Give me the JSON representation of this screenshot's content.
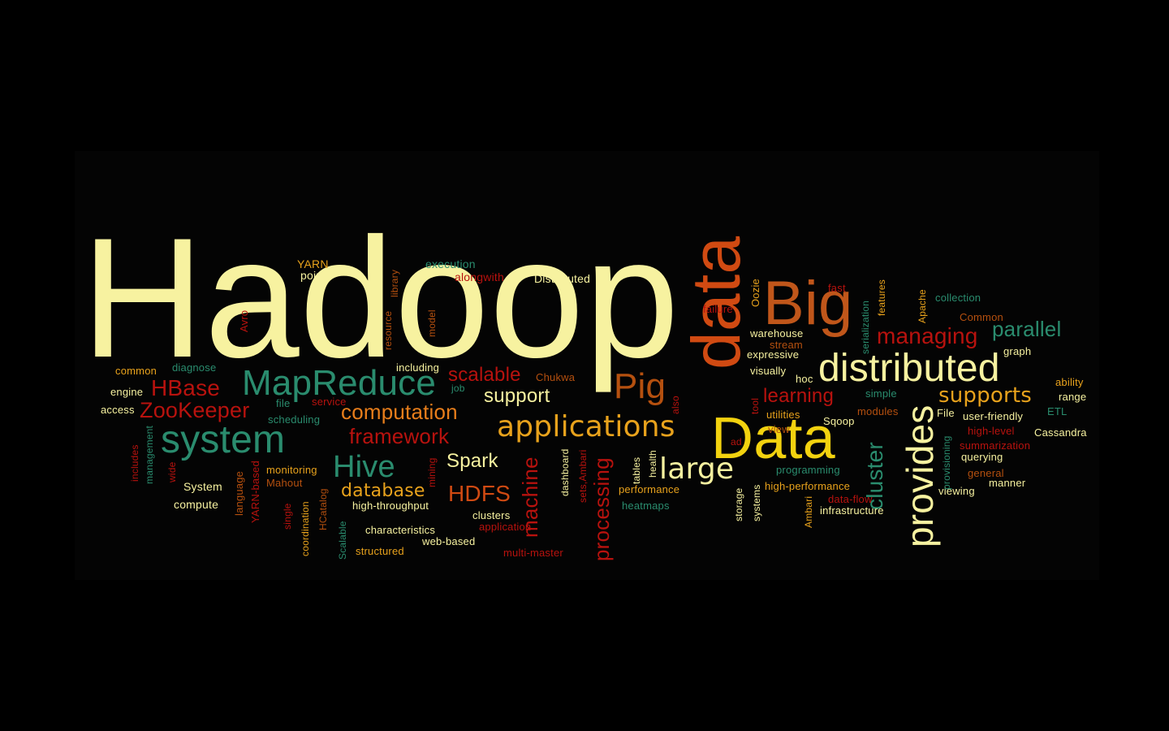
{
  "colors": {
    "background": "#000000",
    "cream": "#F7F2A0",
    "orange": "#E87E1B",
    "red": "#B8120E",
    "green": "#2A8C6E",
    "brown": "#B5500F",
    "rust": "#D04A12",
    "gold": "#E0A21C"
  },
  "words": [
    {
      "text": "Hadoop",
      "color": "#F7F2A0"
    },
    {
      "text": "data",
      "color": "#D04A12"
    },
    {
      "text": "Big",
      "color": "#C0561A"
    },
    {
      "text": "Data",
      "color": "#F2D20F"
    },
    {
      "text": "distributed",
      "color": "#F7F2A0"
    },
    {
      "text": "provides",
      "color": "#F7F2A0"
    },
    {
      "text": "MapReduce",
      "color": "#2A8C6E"
    },
    {
      "text": "system",
      "color": "#2A8C6E"
    },
    {
      "text": "applications",
      "color": "#E8A21C"
    },
    {
      "text": "Pig",
      "color": "#B5500F"
    },
    {
      "text": "large",
      "color": "#F7F2A0"
    },
    {
      "text": "Hive",
      "color": "#2A8C6E"
    },
    {
      "text": "HBase",
      "color": "#B8120E"
    },
    {
      "text": "ZooKeeper",
      "color": "#B8120E"
    },
    {
      "text": "managing",
      "color": "#B8120E"
    },
    {
      "text": "parallel",
      "color": "#2A8C6E"
    },
    {
      "text": "supports",
      "color": "#E8A21C"
    },
    {
      "text": "cluster",
      "color": "#2A8C6E"
    },
    {
      "text": "computation",
      "color": "#E87E1B"
    },
    {
      "text": "framework",
      "color": "#B8120E"
    },
    {
      "text": "scalable",
      "color": "#B8120E"
    },
    {
      "text": "support",
      "color": "#F7F2A0"
    },
    {
      "text": "Spark",
      "color": "#F7F2A0"
    },
    {
      "text": "database",
      "color": "#E8A21C"
    },
    {
      "text": "HDFS",
      "color": "#D04A12"
    },
    {
      "text": "machine",
      "color": "#B8120E"
    },
    {
      "text": "processing",
      "color": "#B8120E"
    },
    {
      "text": "learning",
      "color": "#B8120E"
    },
    {
      "text": "YARN",
      "color": "#E8A21C"
    },
    {
      "text": "points",
      "color": "#F7F2A0"
    },
    {
      "text": "execution",
      "color": "#2A8C6E"
    },
    {
      "text": "alongwith",
      "color": "#B8120E"
    },
    {
      "text": "Distributed",
      "color": "#F7F2A0"
    },
    {
      "text": "library",
      "color": "#B5500F"
    },
    {
      "text": "Avro",
      "color": "#B8120E"
    },
    {
      "text": "resource",
      "color": "#B5500F"
    },
    {
      "text": "model",
      "color": "#B5500F"
    },
    {
      "text": "common",
      "color": "#E8A21C"
    },
    {
      "text": "diagnose",
      "color": "#2A8C6E"
    },
    {
      "text": "including",
      "color": "#F7F2A0"
    },
    {
      "text": "engine",
      "color": "#F7F2A0"
    },
    {
      "text": "access",
      "color": "#F7F2A0"
    },
    {
      "text": "file",
      "color": "#2A8C6E"
    },
    {
      "text": "service",
      "color": "#B8120E"
    },
    {
      "text": "job",
      "color": "#2A8C6E"
    },
    {
      "text": "scheduling",
      "color": "#2A8C6E"
    },
    {
      "text": "Chukwa",
      "color": "#B5500F"
    },
    {
      "text": "includes",
      "color": "#B8120E"
    },
    {
      "text": "management",
      "color": "#2A8C6E"
    },
    {
      "text": "wide",
      "color": "#B8120E"
    },
    {
      "text": "System",
      "color": "#F7F2A0"
    },
    {
      "text": "compute",
      "color": "#F7F2A0"
    },
    {
      "text": "language",
      "color": "#B5500F"
    },
    {
      "text": "YARN-based",
      "color": "#B8120E"
    },
    {
      "text": "monitoring",
      "color": "#E8A21C"
    },
    {
      "text": "Mahout",
      "color": "#B5500F"
    },
    {
      "text": "single",
      "color": "#B8120E"
    },
    {
      "text": "coordination",
      "color": "#E8A21C"
    },
    {
      "text": "HCatalog",
      "color": "#B5500F"
    },
    {
      "text": "Scalable",
      "color": "#2A8C6E"
    },
    {
      "text": "high-throughput",
      "color": "#F7F2A0"
    },
    {
      "text": "characteristics",
      "color": "#F7F2A0"
    },
    {
      "text": "structured",
      "color": "#E8A21C"
    },
    {
      "text": "mining",
      "color": "#B8120E"
    },
    {
      "text": "clusters",
      "color": "#F7F2A0"
    },
    {
      "text": "application",
      "color": "#B8120E"
    },
    {
      "text": "web-based",
      "color": "#F7F2A0"
    },
    {
      "text": "multi-master",
      "color": "#B8120E"
    },
    {
      "text": "dashboard",
      "color": "#F7F2A0"
    },
    {
      "text": "sets,Ambari",
      "color": "#B8120E"
    },
    {
      "text": "performance",
      "color": "#E8A21C"
    },
    {
      "text": "heatmaps",
      "color": "#2A8C6E"
    },
    {
      "text": "tables",
      "color": "#F7F2A0"
    },
    {
      "text": "health",
      "color": "#F7F2A0"
    },
    {
      "text": "also",
      "color": "#B8120E"
    },
    {
      "text": "failure",
      "color": "#B8120E"
    },
    {
      "text": "Oozie",
      "color": "#E8A21C"
    },
    {
      "text": "warehouse",
      "color": "#F7F2A0"
    },
    {
      "text": "stream",
      "color": "#B5500F"
    },
    {
      "text": "expressive",
      "color": "#F7F2A0"
    },
    {
      "text": "visually",
      "color": "#F7F2A0"
    },
    {
      "text": "hoc",
      "color": "#F7F2A0"
    },
    {
      "text": "tool",
      "color": "#B8120E"
    },
    {
      "text": "utilities",
      "color": "#E8A21C"
    },
    {
      "text": "view",
      "color": "#B5500F"
    },
    {
      "text": "ad",
      "color": "#B8120E"
    },
    {
      "text": "Sqoop",
      "color": "#F7F2A0"
    },
    {
      "text": "programming",
      "color": "#2A8C6E"
    },
    {
      "text": "high-performance",
      "color": "#E8A21C"
    },
    {
      "text": "storage",
      "color": "#F7F2A0"
    },
    {
      "text": "systems",
      "color": "#F7F2A0"
    },
    {
      "text": "Ambari",
      "color": "#E8A21C"
    },
    {
      "text": "data-flow",
      "color": "#B8120E"
    },
    {
      "text": "infrastructure",
      "color": "#F7F2A0"
    },
    {
      "text": "fast",
      "color": "#B8120E"
    },
    {
      "text": "serialization",
      "color": "#2A8C6E"
    },
    {
      "text": "features",
      "color": "#E8A21C"
    },
    {
      "text": "Apache",
      "color": "#E8A21C"
    },
    {
      "text": "collection",
      "color": "#2A8C6E"
    },
    {
      "text": "Common",
      "color": "#B5500F"
    },
    {
      "text": "graph",
      "color": "#F7F2A0"
    },
    {
      "text": "simple",
      "color": "#2A8C6E"
    },
    {
      "text": "modules",
      "color": "#B5500F"
    },
    {
      "text": "File",
      "color": "#F7F2A0"
    },
    {
      "text": "user-friendly",
      "color": "#F7F2A0"
    },
    {
      "text": "high-level",
      "color": "#B8120E"
    },
    {
      "text": "summarization",
      "color": "#B8120E"
    },
    {
      "text": "querying",
      "color": "#F7F2A0"
    },
    {
      "text": "general",
      "color": "#B5500F"
    },
    {
      "text": "manner",
      "color": "#F7F2A0"
    },
    {
      "text": "viewing",
      "color": "#F7F2A0"
    },
    {
      "text": "provisioning",
      "color": "#2A8C6E"
    },
    {
      "text": "ability",
      "color": "#E8A21C"
    },
    {
      "text": "range",
      "color": "#F7F2A0"
    },
    {
      "text": "ETL",
      "color": "#2A8C6E"
    },
    {
      "text": "Cassandra",
      "color": "#F7F2A0"
    }
  ]
}
